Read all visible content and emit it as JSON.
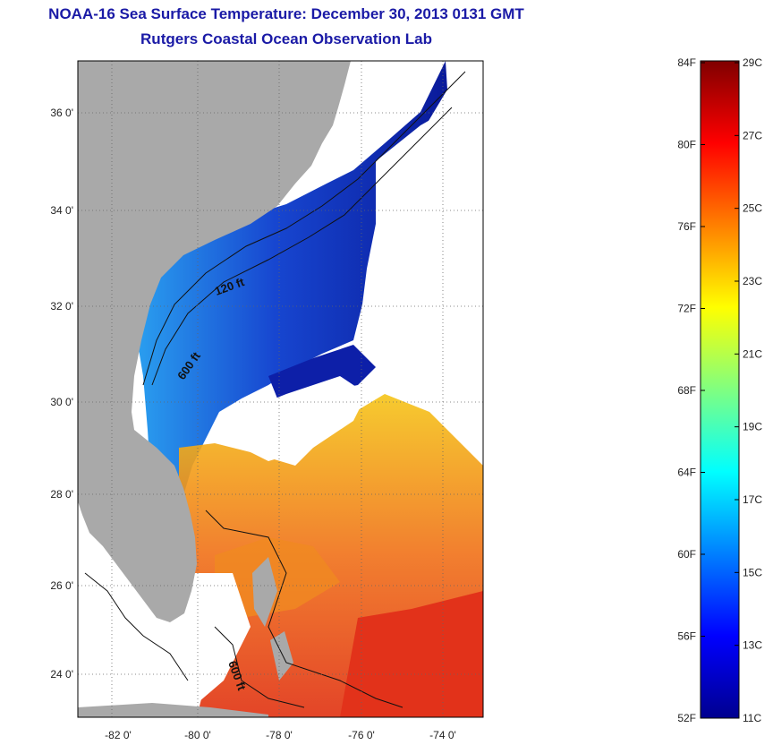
{
  "header": {
    "title": "NOAA-16 Sea Surface Temperature:  December 30, 2013 0131 GMT",
    "subtitle": "Rutgers Coastal Ocean Observation Lab"
  },
  "map": {
    "lon_ticks": [
      "-82 0'",
      "-80 0'",
      "-78 0'",
      "-76 0'",
      "-74 0'"
    ],
    "lat_ticks": [
      "36 0'",
      "34 0'",
      "32 0'",
      "30 0'",
      "28 0'",
      "26 0'",
      "24 0'"
    ],
    "contour_labels": [
      "120 ft",
      "600 ft",
      "600 ft"
    ],
    "colors": {
      "land": "#a9a9a9",
      "cloud": "#ffffff",
      "cold": "#0a1a9a",
      "warm": "#e04a12"
    }
  },
  "colorbar": {
    "fahrenheit_labels": [
      "84F",
      "80F",
      "76F",
      "72F",
      "68F",
      "64F",
      "60F",
      "56F",
      "52F"
    ],
    "celsius_labels": [
      "29C",
      "27C",
      "25C",
      "23C",
      "21C",
      "19C",
      "17C",
      "15C",
      "13C",
      "11C"
    ],
    "colormap": "jet"
  }
}
